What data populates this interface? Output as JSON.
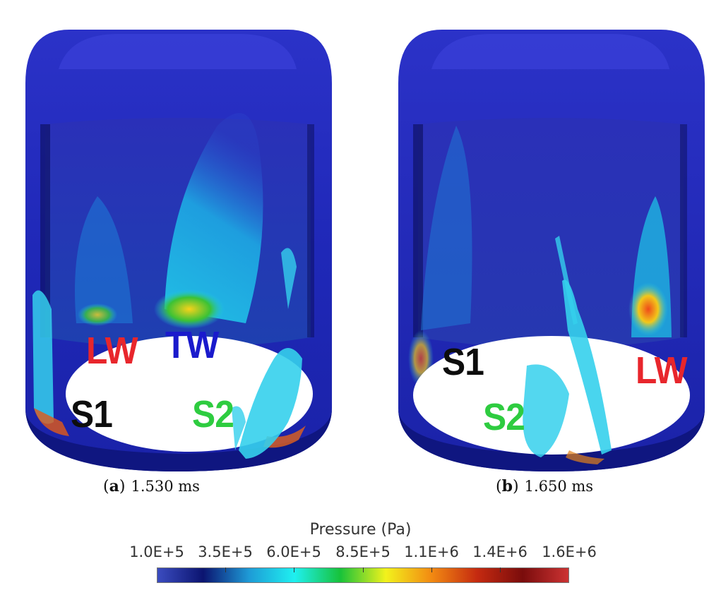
{
  "panels": [
    {
      "caption_tag": "a",
      "caption_time": "1.530 ms",
      "labels": {
        "first": "LW",
        "second": "TW",
        "third": "S1",
        "fourth": "S2"
      }
    },
    {
      "caption_tag": "b",
      "caption_time": "1.650 ms",
      "labels": {
        "first": "S1",
        "second": "LW",
        "third": "S2"
      }
    }
  ],
  "colorbar": {
    "title": "Pressure (Pa)",
    "ticks": [
      "1.0E+5",
      "3.5E+5",
      "6.0E+5",
      "8.5E+5",
      "1.1E+6",
      "1.4E+6",
      "1.6E+6"
    ],
    "colormap": [
      "#3b4cc0",
      "#0b1470",
      "#1e9ad6",
      "#1ff0f0",
      "#17c23a",
      "#f2f21c",
      "#f28a12",
      "#c52a10",
      "#7a0c0c",
      "#cc3333"
    ]
  },
  "label_colors": {
    "lw": "#e8262c",
    "tw": "#1a1acc",
    "s1": "#0d0d0d",
    "s2": "#2ecc40"
  }
}
